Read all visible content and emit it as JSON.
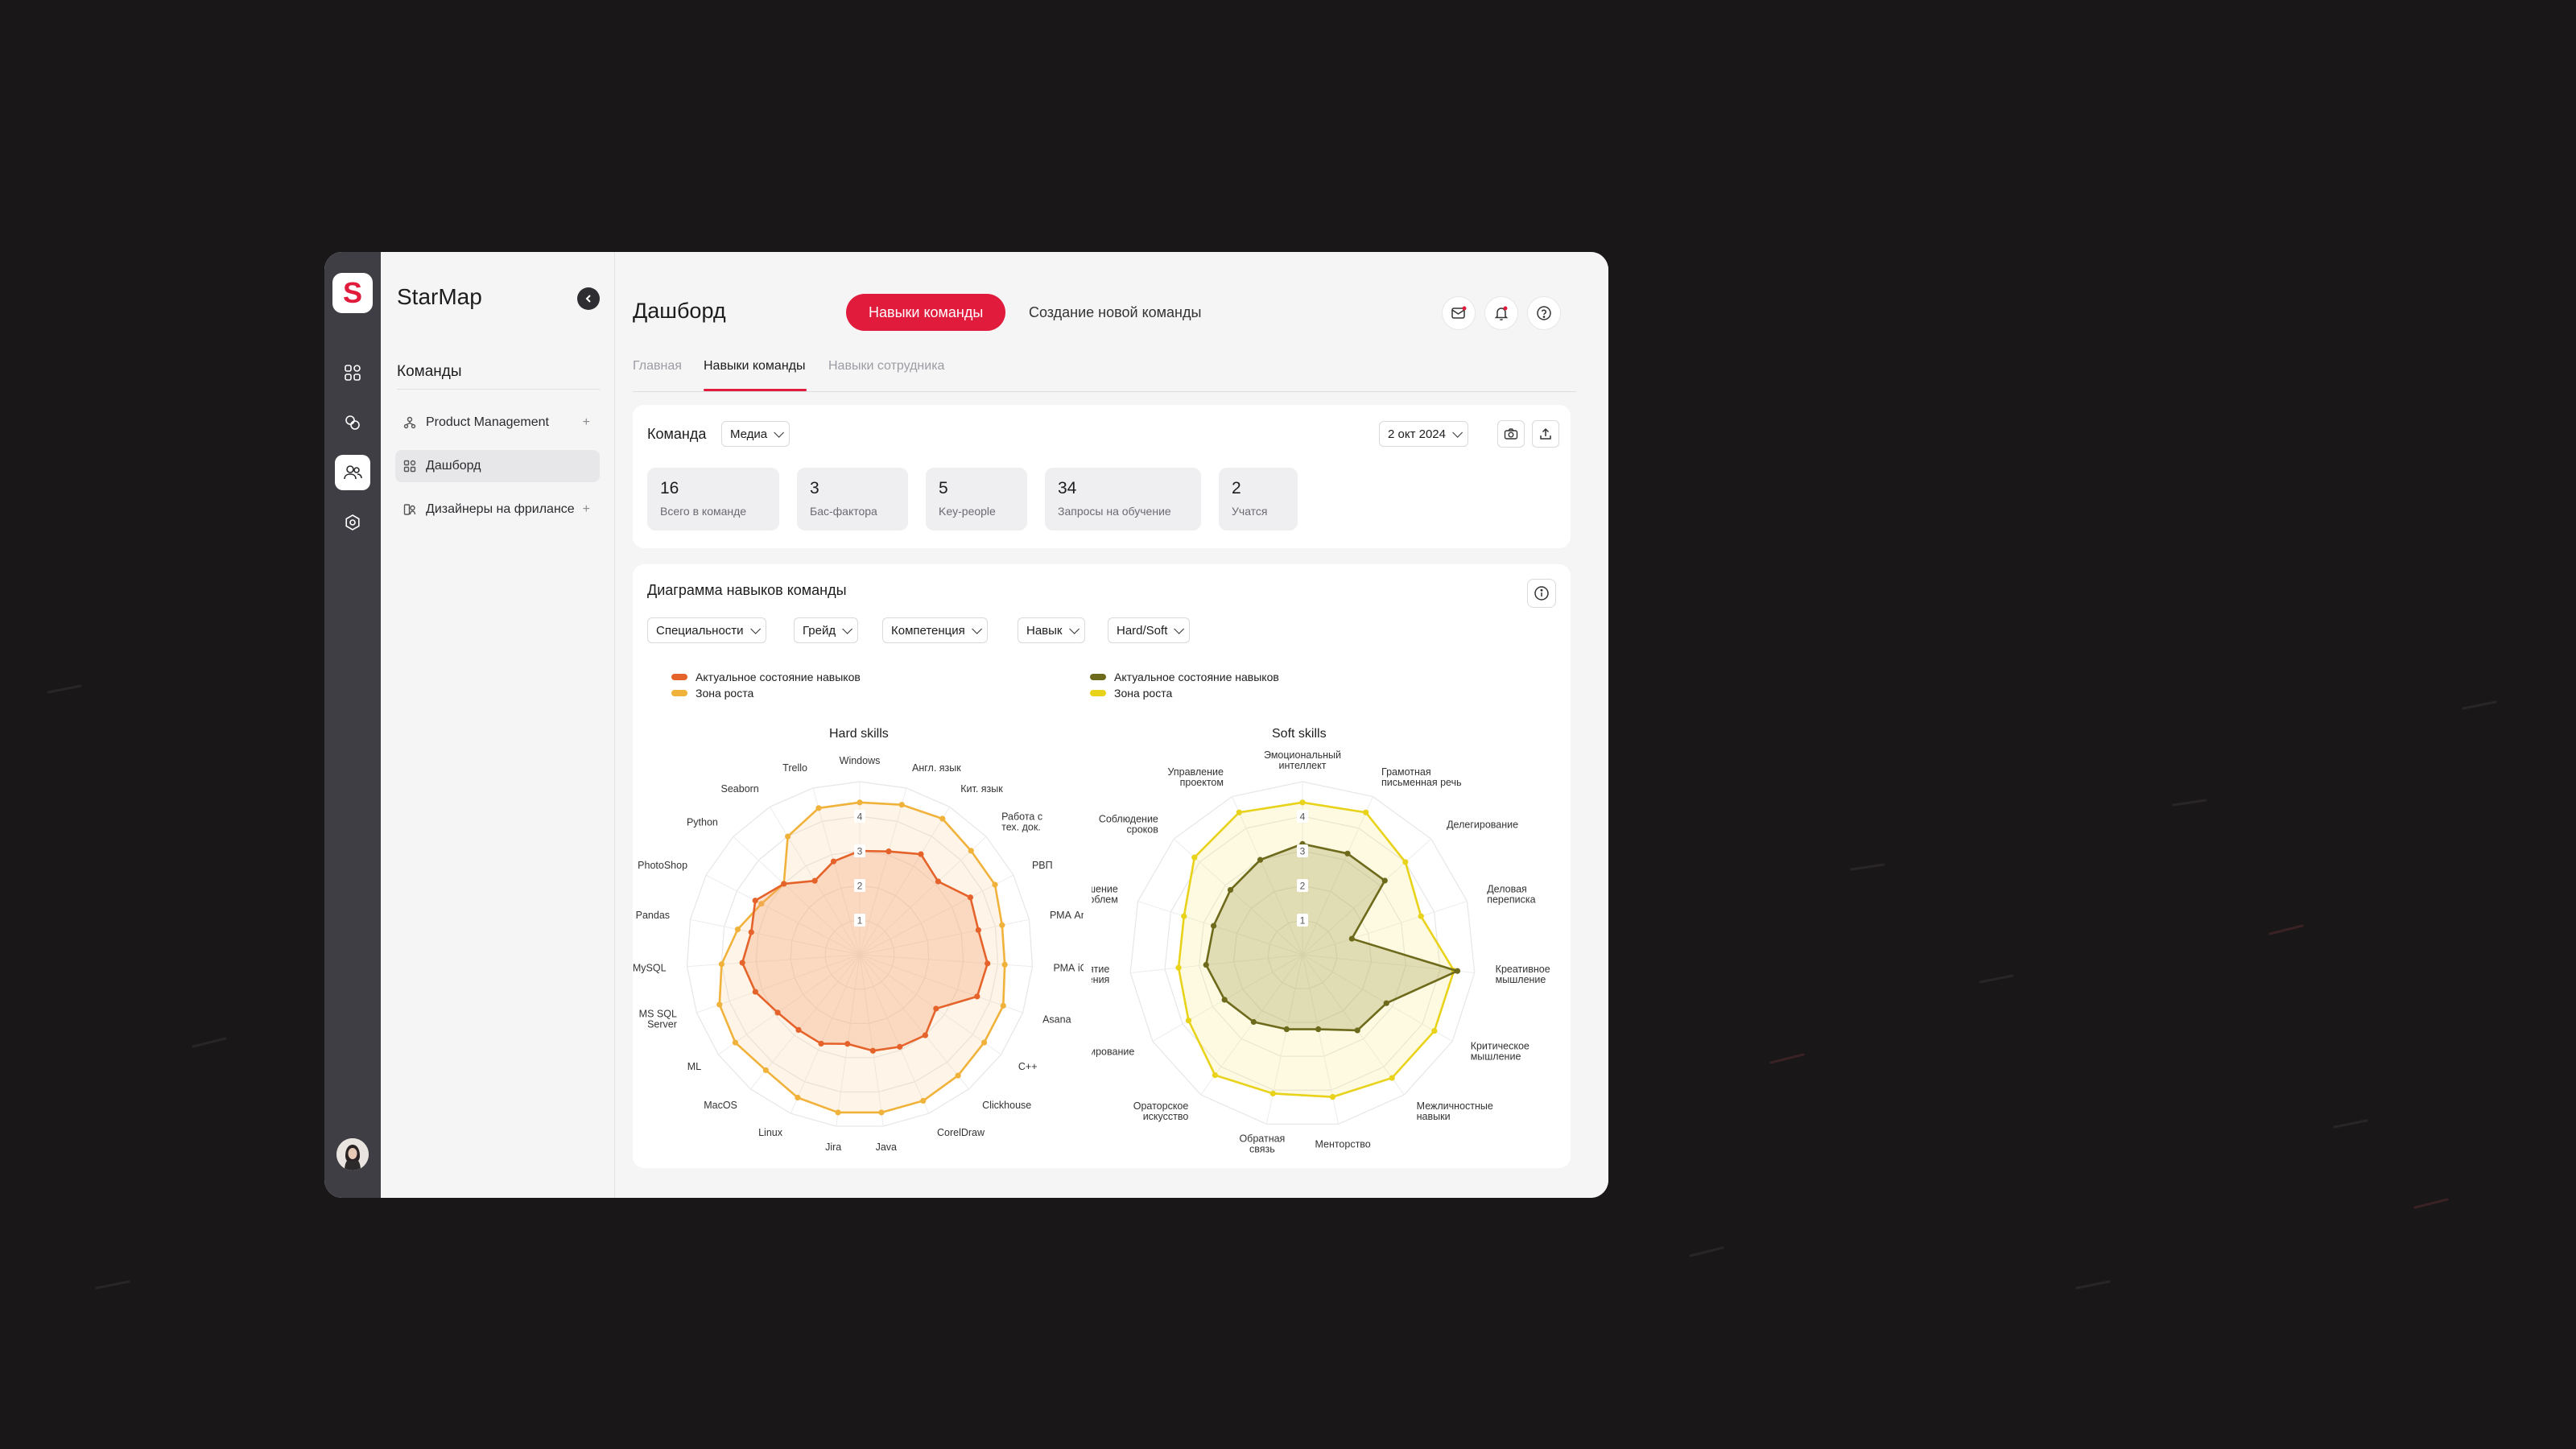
{
  "app": {
    "name": "StarMap",
    "logo_letter": "S"
  },
  "rail": [
    {
      "icon": "grid-icon"
    },
    {
      "icon": "layers-icon"
    },
    {
      "icon": "team-icon",
      "active": true
    },
    {
      "icon": "settings-icon"
    }
  ],
  "sidebar": {
    "heading": "Команды",
    "items": [
      {
        "label": "Product Management",
        "icon": "org-icon",
        "plus": "+"
      },
      {
        "label": "Дашборд",
        "icon": "dashboard-icon",
        "active": true
      },
      {
        "label": "Дизайнеры на фрилансе",
        "icon": "group-icon",
        "plus": "+"
      }
    ]
  },
  "header": {
    "title": "Дашборд",
    "tab_active": "Навыки команды",
    "tab_inactive": "Создание новой команды",
    "icons": [
      "mail-icon",
      "bell-icon",
      "help-icon"
    ]
  },
  "subtabs": [
    "Главная",
    "Навыки команды",
    "Навыки сотрудника"
  ],
  "team": {
    "label": "Команда",
    "dropdown": "Медиа",
    "date": "2 окт 2024",
    "stats": [
      {
        "value": "16",
        "label": "Всего в команде"
      },
      {
        "value": "3",
        "label": "Бас-фактора"
      },
      {
        "value": "5",
        "label": "Key-people"
      },
      {
        "value": "34",
        "label": "Запросы на обучение"
      },
      {
        "value": "2",
        "label": "Учатся"
      }
    ]
  },
  "skills_card": {
    "title": "Диаграмма навыков команды",
    "filters": [
      "Специальности",
      "Грейд",
      "Компетенция",
      "Навык",
      "Hard/Soft"
    ]
  },
  "colors": {
    "accent": "#e01b3c",
    "hard_actual": "#e5632a",
    "hard_growth": "#f0b23a",
    "soft_actual": "#6e6a1c",
    "soft_growth": "#e8d21a"
  },
  "chart_data": [
    {
      "type": "radar",
      "title": "Hard skills",
      "ticks": [
        "1",
        "2",
        "3",
        "4"
      ],
      "rmax": 5,
      "categories": [
        "Windows",
        "Англ. язык",
        "Кит. язык",
        "Работа с тех. док.",
        "РВП",
        "РМА Android",
        "РМА iOS",
        "Asana",
        "C++",
        "Clickhouse",
        "CorelDraw",
        "Java",
        "Jira",
        "Linux",
        "MacOS",
        "ML",
        "MS SQL Server",
        "MySQL",
        "Pandas",
        "PhotoShop",
        "Python",
        "Seaborn",
        "Trello"
      ],
      "series": [
        {
          "name": "Актуальное состояние навыков",
          "values": [
            3.0,
            3.1,
            3.4,
            3.1,
            3.6,
            3.5,
            3.7,
            3.6,
            2.7,
            3.0,
            2.9,
            2.8,
            2.6,
            2.8,
            2.8,
            2.9,
            3.2,
            3.4,
            3.2,
            3.4,
            3.0,
            2.5,
            2.8
          ]
        },
        {
          "name": "Зона роста",
          "values": [
            4.4,
            4.5,
            4.6,
            4.4,
            4.4,
            4.2,
            4.2,
            4.4,
            4.4,
            4.5,
            4.6,
            4.6,
            4.6,
            4.5,
            4.3,
            4.4,
            4.3,
            4.0,
            3.6,
            3.2,
            3.0,
            4.0,
            4.4
          ]
        }
      ]
    },
    {
      "type": "radar",
      "title": "Soft skills",
      "ticks": [
        "1",
        "2",
        "3",
        "4"
      ],
      "rmax": 5,
      "categories": [
        "Эмоциональный интеллект",
        "Грамотная письменная речь",
        "Делегирование",
        "Деловая переписка",
        "Креативное мышление",
        "Критическое мышление",
        "Межличностные навыки",
        "Менторство",
        "Обратная связь",
        "Ораторское искусство",
        "Планирование",
        "Принятие решения",
        "Решение проблем",
        "Соблюдение сроков",
        "Управление проектом"
      ],
      "series": [
        {
          "name": "Актуальное состояние навыков",
          "values": [
            3.2,
            3.2,
            3.2,
            1.5,
            4.5,
            2.8,
            2.7,
            2.2,
            2.2,
            2.4,
            2.6,
            2.8,
            2.7,
            2.8,
            3.0
          ]
        },
        {
          "name": "Зона роста",
          "values": [
            4.4,
            4.5,
            4.0,
            3.6,
            4.4,
            4.4,
            4.4,
            4.2,
            4.1,
            4.3,
            3.8,
            3.6,
            3.6,
            4.2,
            4.5
          ]
        }
      ]
    }
  ]
}
